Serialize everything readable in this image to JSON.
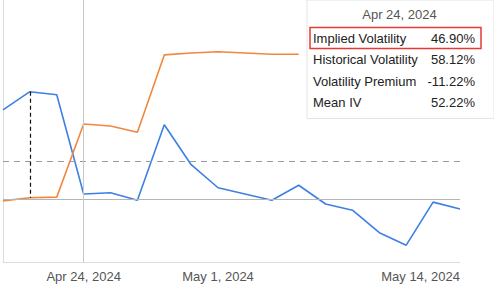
{
  "chart_data": {
    "type": "line",
    "categories": [
      null,
      null,
      null,
      "Apr 24, 2024",
      null,
      null,
      null,
      null,
      "May 1, 2024",
      null,
      null,
      null,
      null,
      null,
      null,
      null,
      null,
      "May 14, 2024"
    ],
    "series": [
      {
        "name": "Implied Volatility",
        "color": "#3f7fe3",
        "values": [
          60.4,
          63.3,
          62.8,
          46.9,
          47.1,
          45.9,
          58.0,
          51.6,
          47.9,
          46.9,
          45.9,
          48.3,
          45.3,
          44.3,
          40.7,
          38.7,
          45.6,
          44.5
        ]
      },
      {
        "name": "Historical Volatility",
        "color": "#f0883e",
        "values": [
          45.8,
          46.3,
          46.4,
          58.12,
          57.8,
          56.8,
          69.2,
          69.5,
          69.7,
          69.5,
          69.3,
          69.3,
          null,
          null,
          null,
          null,
          null,
          null
        ]
      }
    ],
    "ylim": [
      36,
      78
    ],
    "yticks": [
      46
    ],
    "grid": true,
    "tick_labels": "x",
    "mean_iv": 52.22,
    "spread_marker_index": 1,
    "tooltip": {
      "title": "Apr 24, 2024",
      "rows": [
        {
          "label": "Implied Volatility",
          "value": "46.90%"
        },
        {
          "label": "Historical Volatility",
          "value": "58.12%"
        },
        {
          "label": "Volatility Premium",
          "value": "-11.22%"
        },
        {
          "label": "Mean IV",
          "value": "52.22%"
        }
      ],
      "highlight": "Implied Volatility"
    }
  }
}
